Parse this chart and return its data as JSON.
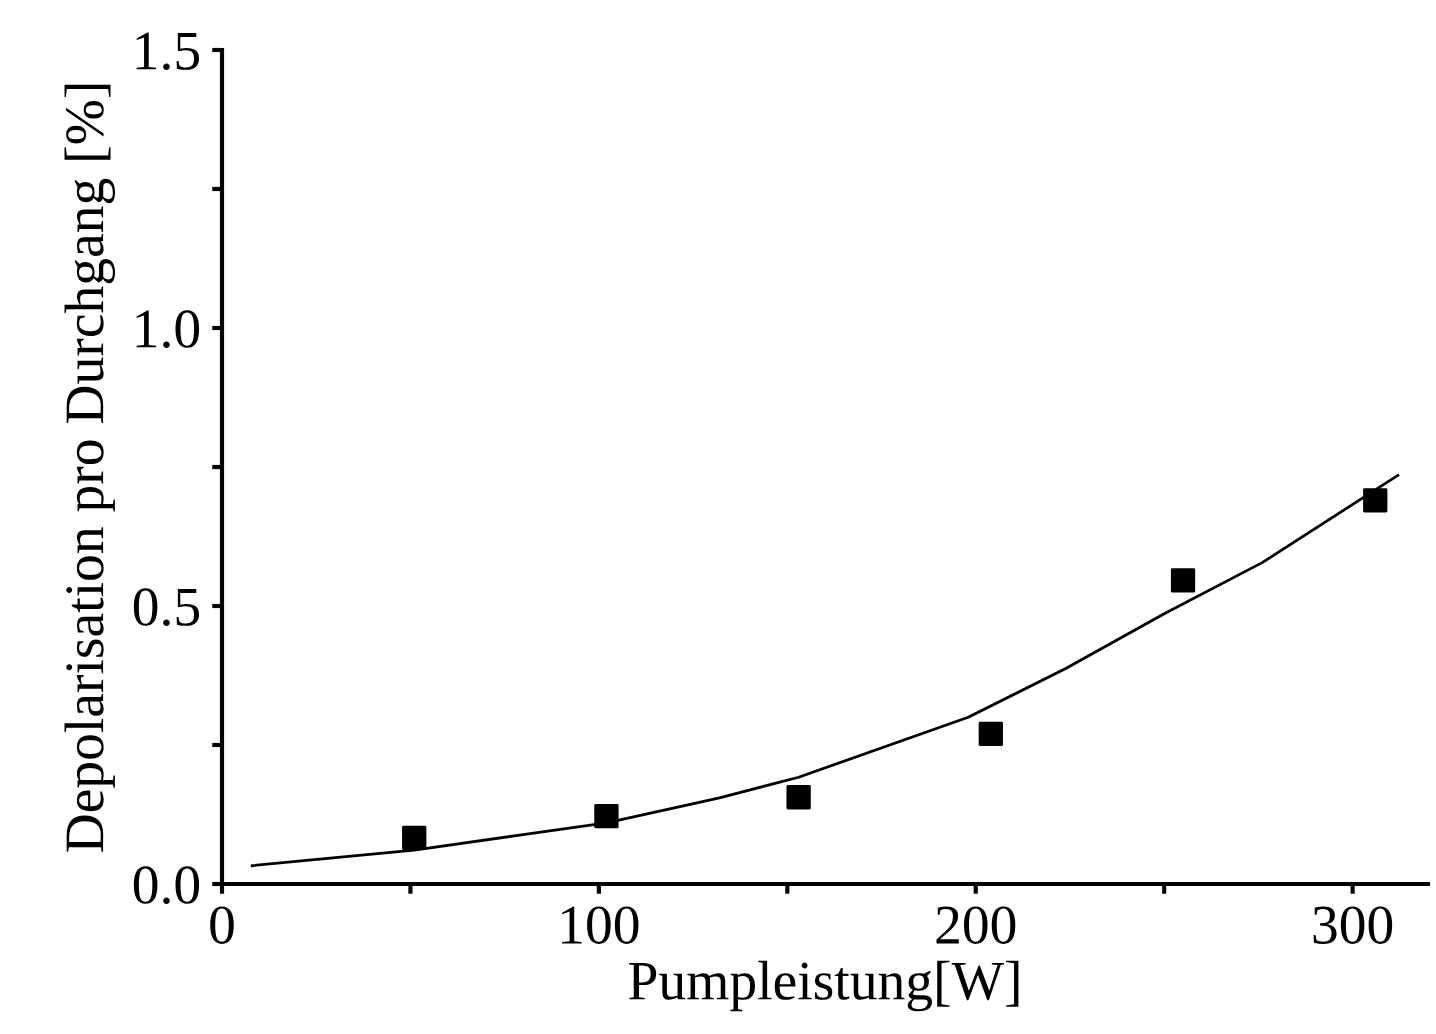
{
  "chart_data": {
    "type": "scatter",
    "xlabel": "Pumpleistung[W]",
    "ylabel": "Depolarisation pro Durchgang [%]",
    "xlim": [
      0,
      320
    ],
    "ylim": [
      0,
      1.5
    ],
    "xticks": [
      0,
      {
        "value": 50,
        "label": null
      },
      100,
      {
        "value": 150,
        "label": null
      },
      200,
      {
        "value": 250,
        "label": null
      },
      300
    ],
    "yticks": [
      {
        "value": 0,
        "label": "0.0"
      },
      {
        "value": 0.25,
        "label": null
      },
      {
        "value": 0.5,
        "label": "0.5"
      },
      {
        "value": 0.75,
        "label": null
      },
      {
        "value": 1.0,
        "label": "1.0"
      },
      {
        "value": 1.25,
        "label": null
      },
      {
        "value": 1.5,
        "label": "1.5"
      }
    ],
    "grid": false,
    "legend": false,
    "series": [
      {
        "color": "#000000",
        "marker": "square",
        "x": [
          51,
          102,
          153,
          204,
          255,
          306
        ],
        "values": [
          0.083,
          0.122,
          0.156,
          0.27,
          0.546,
          0.69
        ]
      },
      {
        "type": "line",
        "color": "#000000",
        "marker": "none",
        "line_style": "solid",
        "x": [
          8,
          51,
          78,
          102,
          132,
          153,
          198,
          224,
          250,
          276,
          312
        ],
        "values": [
          0.033,
          0.061,
          0.087,
          0.11,
          0.155,
          0.192,
          0.3,
          0.388,
          0.486,
          0.578,
          0.735
        ]
      }
    ]
  }
}
